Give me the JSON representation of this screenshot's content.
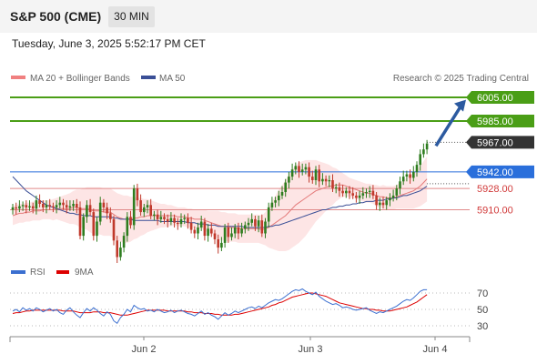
{
  "header": {
    "symbol": "S&P 500 (CME)",
    "interval": "30 MIN",
    "timestamp": "Tuesday, June 3, 2025 5:52:17 PM CET"
  },
  "legend": {
    "ma20": "MA 20 + Bollinger Bands",
    "ma50": "MA 50",
    "credit": "Research © 2025 Trading Central",
    "rsi": "RSI",
    "rsi_ma": "9MA"
  },
  "colors": {
    "up": "#2e7d1f",
    "down": "#c0392b",
    "ma20": "#e47a7a",
    "ma50": "#3a4f96",
    "bollinger": "#fde0e0",
    "resistance": "#4a9e16",
    "support": "#e08a8a",
    "pivot": "#2a6fdb",
    "arrow": "#2c5aa0",
    "price": "#333333"
  },
  "chart_data": [
    {
      "type": "candlestick",
      "title": "S&P 500 (CME)",
      "interval": "30 MIN",
      "x_ticks": [
        "Jun 2",
        "Jun 3",
        "Jun 4"
      ],
      "ylim": [
        5855,
        6020
      ],
      "levels": [
        {
          "value": 6005.0,
          "label": "6005.00",
          "kind": "resistance"
        },
        {
          "value": 5985.0,
          "label": "5985.00",
          "kind": "resistance"
        },
        {
          "value": 5967.0,
          "label": "5967.00",
          "kind": "last"
        },
        {
          "value": 5942.0,
          "label": "5942.00",
          "kind": "pivot"
        },
        {
          "value": 5928.0,
          "label": "5928.00",
          "kind": "support"
        },
        {
          "value": 5910.0,
          "label": "5910.00",
          "kind": "support"
        }
      ],
      "closes": [
        5912,
        5911,
        5913,
        5914,
        5912,
        5913,
        5911,
        5918,
        5915,
        5912,
        5914,
        5913,
        5912,
        5914,
        5916,
        5914,
        5912,
        5913,
        5915,
        5912,
        5888,
        5904,
        5914,
        5908,
        5888,
        5900,
        5916,
        5912,
        5907,
        5902,
        5884,
        5870,
        5878,
        5888,
        5904,
        5897,
        5928,
        5918,
        5908,
        5912,
        5914,
        5905,
        5906,
        5902,
        5904,
        5902,
        5900,
        5903,
        5899,
        5898,
        5902,
        5903,
        5899,
        5893,
        5890,
        5895,
        5900,
        5888,
        5894,
        5890,
        5885,
        5878,
        5882,
        5895,
        5887,
        5890,
        5895,
        5890,
        5894,
        5897,
        5899,
        5902,
        5896,
        5901,
        5890,
        5900,
        5912,
        5916,
        5918,
        5922,
        5925,
        5933,
        5938,
        5944,
        5947,
        5942,
        5944,
        5946,
        5938,
        5935,
        5944,
        5934,
        5936,
        5934,
        5935,
        5928,
        5929,
        5926,
        5924,
        5926,
        5924,
        5922,
        5920,
        5922,
        5924,
        5925,
        5926,
        5922,
        5914,
        5916,
        5914,
        5918,
        5920,
        5922,
        5928,
        5934,
        5938,
        5940,
        5937,
        5942,
        5948,
        5957,
        5961,
        5966
      ],
      "ma20": [
        5905,
        5906,
        5907,
        5907,
        5908,
        5908,
        5909,
        5909,
        5909,
        5910,
        5910,
        5910,
        5910,
        5911,
        5911,
        5911,
        5911,
        5911,
        5912,
        5912,
        5911,
        5911,
        5911,
        5910,
        5909,
        5909,
        5909,
        5908,
        5908,
        5908,
        5906,
        5904,
        5903,
        5902,
        5902,
        5902,
        5903,
        5903,
        5904,
        5904,
        5905,
        5905,
        5905,
        5905,
        5905,
        5905,
        5905,
        5905,
        5905,
        5904,
        5904,
        5904,
        5903,
        5903,
        5902,
        5902,
        5902,
        5901,
        5900,
        5899,
        5898,
        5897,
        5896,
        5896,
        5895,
        5895,
        5895,
        5894,
        5894,
        5894,
        5894,
        5894,
        5894,
        5894,
        5893,
        5894,
        5895,
        5897,
        5899,
        5901,
        5903,
        5905,
        5908,
        5911,
        5914,
        5916,
        5918,
        5920,
        5922,
        5924,
        5926,
        5927,
        5928,
        5929,
        5930,
        5930,
        5931,
        5931,
        5931,
        5930,
        5929,
        5928,
        5927,
        5926,
        5925,
        5924,
        5924,
        5923,
        5922,
        5921,
        5921,
        5920,
        5920,
        5920,
        5921,
        5922,
        5923,
        5924,
        5925,
        5926,
        5928,
        5930,
        5933,
        5936
      ],
      "ma50": [
        5938,
        5935,
        5932,
        5929,
        5926,
        5924,
        5922,
        5920,
        5918,
        5916,
        5914,
        5913,
        5912,
        5911,
        5910,
        5909,
        5908,
        5907,
        5907,
        5906,
        5906,
        5905,
        5905,
        5905,
        5904,
        5904,
        5904,
        5904,
        5904,
        5904,
        5903,
        5903,
        5902,
        5902,
        5902,
        5902,
        5901,
        5901,
        5901,
        5901,
        5901,
        5901,
        5901,
        5901,
        5900,
        5900,
        5900,
        5900,
        5900,
        5900,
        5900,
        5900,
        5899,
        5899,
        5899,
        5898,
        5898,
        5898,
        5897,
        5897,
        5897,
        5896,
        5896,
        5896,
        5896,
        5896,
        5896,
        5896,
        5896,
        5895,
        5895,
        5895,
        5895,
        5895,
        5895,
        5895,
        5896,
        5896,
        5897,
        5897,
        5898,
        5899,
        5900,
        5901,
        5902,
        5903,
        5904,
        5905,
        5906,
        5907,
        5908,
        5909,
        5910,
        5910,
        5911,
        5912,
        5912,
        5913,
        5913,
        5914,
        5914,
        5915,
        5915,
        5916,
        5916,
        5917,
        5917,
        5917,
        5918,
        5918,
        5918,
        5919,
        5919,
        5920,
        5920,
        5921,
        5922,
        5922,
        5923,
        5924,
        5925,
        5926,
        5928,
        5930
      ],
      "bollinger_width": [
        8,
        8,
        8,
        8,
        8,
        8,
        8,
        8,
        8,
        8,
        8,
        8,
        9,
        9,
        10,
        11,
        12,
        13,
        14,
        15,
        16,
        17,
        18,
        19,
        20,
        20,
        20,
        20,
        20,
        20,
        20,
        20,
        20,
        20,
        20,
        19,
        18,
        17,
        16,
        15,
        14,
        13,
        12,
        11,
        10,
        10,
        9,
        9,
        8,
        8,
        8,
        8,
        8,
        8,
        8,
        8,
        8,
        9,
        9,
        10,
        11,
        12,
        12,
        12,
        12,
        12,
        12,
        12,
        12,
        12,
        12,
        12,
        12,
        12,
        12,
        14,
        17,
        20,
        23,
        26,
        28,
        30,
        32,
        33,
        34,
        34,
        33,
        32,
        30,
        28,
        26,
        24,
        22,
        20,
        18,
        16,
        14,
        12,
        10,
        9,
        8,
        8,
        8,
        8,
        8,
        8,
        8,
        8,
        9,
        9,
        10,
        10,
        10,
        10,
        10,
        11,
        12,
        13,
        14,
        15,
        16,
        17,
        18,
        19
      ]
    },
    {
      "type": "line",
      "series": [
        {
          "name": "RSI"
        },
        {
          "name": "9MA"
        }
      ],
      "ylim": [
        20,
        80
      ],
      "y_ticks": [
        70,
        50,
        30
      ],
      "rsi": [
        48,
        50,
        47,
        52,
        49,
        51,
        48,
        52,
        50,
        47,
        49,
        51,
        48,
        50,
        46,
        44,
        49,
        52,
        47,
        43,
        40,
        46,
        51,
        48,
        52,
        49,
        45,
        42,
        47,
        44,
        36,
        33,
        40,
        44,
        50,
        47,
        55,
        52,
        50,
        51,
        48,
        49,
        47,
        50,
        48,
        46,
        47,
        49,
        46,
        48,
        49,
        47,
        45,
        44,
        42,
        45,
        48,
        44,
        46,
        43,
        41,
        38,
        42,
        46,
        43,
        45,
        48,
        46,
        48,
        50,
        52,
        53,
        51,
        54,
        52,
        55,
        58,
        60,
        62,
        61,
        63,
        66,
        69,
        72,
        74,
        73,
        75,
        72,
        70,
        68,
        71,
        66,
        63,
        60,
        58,
        56,
        57,
        55,
        52,
        53,
        52,
        50,
        49,
        50,
        51,
        52,
        49,
        47,
        45,
        47,
        46,
        48,
        50,
        52,
        54,
        57,
        60,
        62,
        61,
        64,
        68,
        72,
        74,
        74
      ],
      "ma9": [
        45,
        46,
        46,
        47,
        48,
        48,
        49,
        49,
        49,
        49,
        49,
        49,
        49,
        49,
        49,
        48,
        48,
        48,
        48,
        47,
        46,
        46,
        46,
        46,
        47,
        47,
        47,
        46,
        46,
        46,
        45,
        44,
        43,
        43,
        43,
        44,
        45,
        46,
        47,
        48,
        49,
        49,
        49,
        49,
        49,
        49,
        48,
        48,
        48,
        48,
        48,
        48,
        47,
        47,
        46,
        46,
        46,
        45,
        45,
        45,
        44,
        44,
        43,
        43,
        43,
        43,
        44,
        44,
        45,
        46,
        47,
        48,
        49,
        50,
        51,
        52,
        53,
        55,
        56,
        58,
        59,
        61,
        63,
        65,
        66,
        67,
        68,
        69,
        70,
        70,
        69,
        68,
        67,
        66,
        64,
        62,
        60,
        58,
        57,
        56,
        55,
        54,
        53,
        52,
        51,
        51,
        50,
        50,
        49,
        49,
        48,
        48,
        48,
        49,
        50,
        51,
        52,
        53,
        55,
        57,
        59,
        62,
        65,
        68
      ]
    }
  ]
}
